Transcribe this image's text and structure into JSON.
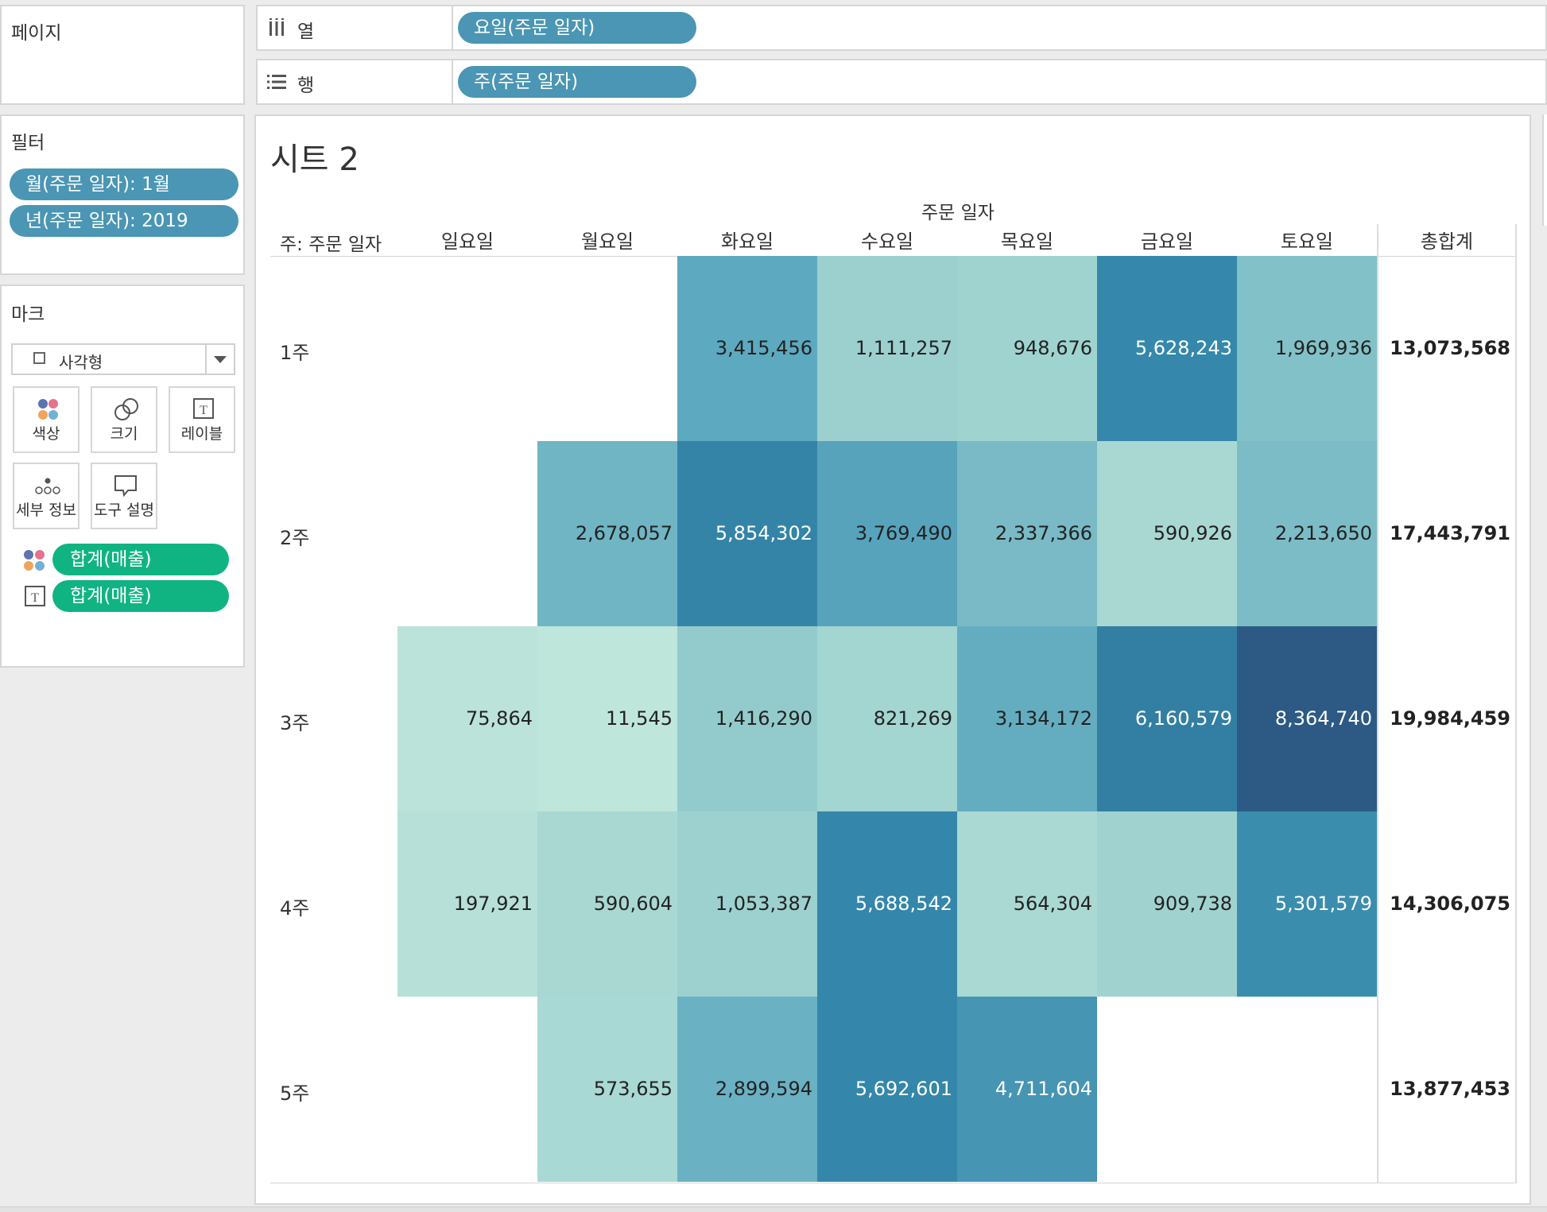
{
  "pages_panel": {
    "title": "페이지"
  },
  "shelves": {
    "columns": {
      "label": "열",
      "pill": "요일(주문 일자)"
    },
    "rows": {
      "label": "행",
      "pill": "주(주문 일자)"
    }
  },
  "filters_panel": {
    "title": "필터",
    "items": [
      "월(주문 일자): 1월",
      "년(주문 일자): 2019"
    ]
  },
  "marks_panel": {
    "title": "마크",
    "mark_type": "사각형",
    "cards": [
      "색상",
      "크기",
      "레이블",
      "세부 정보",
      "도구 설명"
    ],
    "fields": [
      "합계(매출)",
      "합계(매출)"
    ]
  },
  "sheet": {
    "title": "시트 2",
    "column_group_header": "주문 일자",
    "row_header": "주: 주문 일자",
    "columns": [
      "일요일",
      "월요일",
      "화요일",
      "수요일",
      "목요일",
      "금요일",
      "토요일"
    ],
    "total_header": "총합계",
    "rows": [
      {
        "label": "1주",
        "values": [
          "",
          "",
          "3,415,456",
          "1,111,257",
          "948,676",
          "5,628,243",
          "1,969,936"
        ],
        "total": "13,073,568"
      },
      {
        "label": "2주",
        "values": [
          "",
          "2,678,057",
          "5,854,302",
          "3,769,490",
          "2,337,366",
          "590,926",
          "2,213,650"
        ],
        "total": "17,443,791"
      },
      {
        "label": "3주",
        "values": [
          "75,864",
          "11,545",
          "1,416,290",
          "821,269",
          "3,134,172",
          "6,160,579",
          "8,364,740"
        ],
        "total": "19,984,459"
      },
      {
        "label": "4주",
        "values": [
          "197,921",
          "590,604",
          "1,053,387",
          "5,688,542",
          "564,304",
          "909,738",
          "5,301,579"
        ],
        "total": "14,306,075"
      },
      {
        "label": "5주",
        "values": [
          "",
          "573,655",
          "2,899,594",
          "5,692,601",
          "4,711,604",
          "",
          ""
        ],
        "total": "13,877,453"
      }
    ]
  },
  "colors": {
    "pill_blue": "#4a96b4",
    "pill_green": "#10b482",
    "heat_low": "#bfe6db",
    "heat_high": "#2c5a85"
  }
}
